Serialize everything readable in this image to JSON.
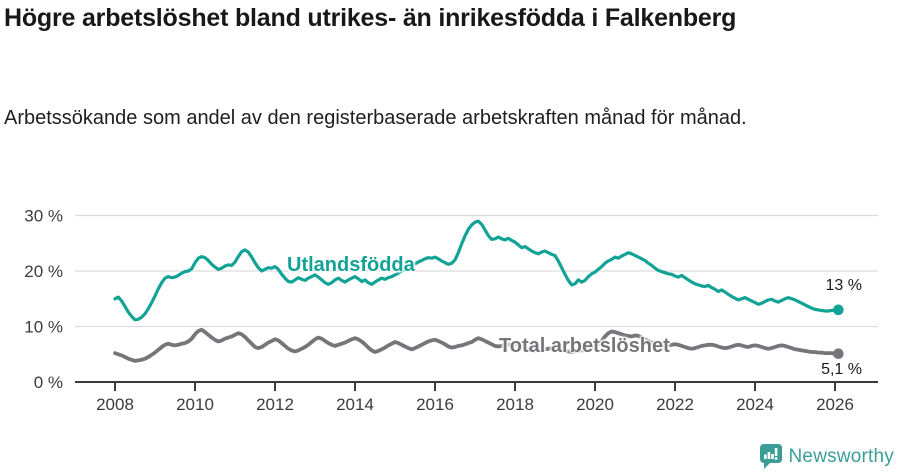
{
  "header": {
    "title": "Högre arbetslöshet bland utrikes- än inrikesfödda i Falkenberg",
    "subtitle": "Arbetssökande som andel av den registerbaserade arbetskraften månad för månad."
  },
  "footer": {
    "brand": "Newsworthy",
    "brand_color": "#3a9e96"
  },
  "colors": {
    "series_foreign_born": "#12a296",
    "series_total": "#76767a",
    "grid": "#dcdcdc",
    "axis": "#3c3c3c",
    "value_label": "#1a1a1a"
  },
  "chart_data": {
    "type": "line",
    "frequency": "monthly",
    "x_start": "2008-01",
    "x_end": "2026-02",
    "x_tick_labels": [
      "2008",
      "2010",
      "2012",
      "2014",
      "2016",
      "2018",
      "2020",
      "2022",
      "2024",
      "2026"
    ],
    "y_tick_values": [
      0,
      10,
      20,
      30
    ],
    "y_tick_labels": [
      "0 %",
      "10 %",
      "20 %",
      "30 %"
    ],
    "ylim": [
      0,
      32
    ],
    "grid": "horizontal-only",
    "legend_position": "inline-labels",
    "series": [
      {
        "name": "Utlandsfödda",
        "color": "#12a296",
        "end_label": "13 %",
        "end_value": 13,
        "values": [
          15.0,
          15.3,
          14.6,
          13.6,
          12.6,
          11.8,
          11.2,
          11.3,
          11.7,
          12.3,
          13.2,
          14.3,
          15.5,
          16.8,
          17.9,
          18.7,
          19.0,
          18.8,
          18.9,
          19.2,
          19.6,
          19.9,
          20.0,
          20.4,
          21.5,
          22.3,
          22.6,
          22.4,
          21.9,
          21.2,
          20.7,
          20.3,
          20.5,
          20.9,
          21.1,
          21.0,
          21.6,
          22.6,
          23.5,
          23.8,
          23.4,
          22.5,
          21.5,
          20.6,
          20.0,
          20.3,
          20.6,
          20.5,
          20.8,
          20.3,
          19.4,
          18.7,
          18.1,
          18.0,
          18.4,
          18.8,
          18.5,
          18.3,
          18.7,
          19.0,
          19.3,
          18.9,
          18.4,
          17.9,
          17.6,
          17.9,
          18.4,
          18.7,
          18.3,
          18.0,
          18.4,
          18.7,
          19.0,
          18.6,
          18.1,
          18.4,
          17.9,
          17.6,
          18.0,
          18.4,
          18.7,
          18.5,
          18.8,
          19.0,
          19.3,
          19.6,
          20.0,
          20.2,
          20.6,
          21.0,
          21.3,
          21.6,
          21.9,
          22.2,
          22.4,
          22.3,
          22.5,
          22.2,
          21.8,
          21.5,
          21.2,
          21.4,
          22.0,
          23.3,
          24.9,
          26.3,
          27.5,
          28.3,
          28.8,
          29.0,
          28.4,
          27.4,
          26.4,
          25.7,
          25.8,
          26.1,
          25.8,
          25.6,
          25.9,
          25.5,
          25.2,
          24.7,
          24.2,
          24.4,
          24.0,
          23.6,
          23.3,
          23.1,
          23.4,
          23.6,
          23.3,
          23.0,
          22.8,
          21.8,
          20.6,
          19.4,
          18.3,
          17.5,
          17.7,
          18.4,
          18.0,
          18.3,
          19.0,
          19.5,
          19.8,
          20.3,
          20.8,
          21.4,
          21.8,
          22.1,
          22.5,
          22.3,
          22.7,
          23.0,
          23.3,
          23.1,
          22.8,
          22.5,
          22.2,
          21.9,
          21.4,
          21.0,
          20.5,
          20.1,
          19.9,
          19.7,
          19.5,
          19.4,
          19.1,
          18.9,
          19.2,
          18.8,
          18.4,
          18.0,
          17.7,
          17.5,
          17.3,
          17.2,
          17.4,
          17.0,
          16.7,
          16.3,
          16.6,
          16.2,
          15.8,
          15.4,
          15.1,
          14.8,
          15.0,
          15.2,
          14.9,
          14.6,
          14.3,
          14.0,
          14.2,
          14.5,
          14.8,
          14.9,
          14.6,
          14.4,
          14.7,
          15.0,
          15.2,
          15.0,
          14.8,
          14.5,
          14.2,
          13.9,
          13.6,
          13.3,
          13.1,
          13.0,
          12.9,
          12.8,
          12.8,
          12.9,
          13.0,
          13.0
        ]
      },
      {
        "name": "Total arbetslöshet",
        "color": "#76767a",
        "end_label": "5,1 %",
        "end_value": 5.1,
        "values": [
          5.2,
          5.0,
          4.8,
          4.5,
          4.2,
          4.0,
          3.8,
          3.9,
          4.0,
          4.2,
          4.5,
          4.9,
          5.3,
          5.8,
          6.3,
          6.7,
          6.9,
          6.7,
          6.6,
          6.7,
          6.9,
          7.0,
          7.3,
          7.8,
          8.6,
          9.2,
          9.4,
          9.0,
          8.5,
          8.0,
          7.6,
          7.3,
          7.5,
          7.8,
          8.0,
          8.2,
          8.5,
          8.8,
          8.6,
          8.1,
          7.5,
          6.9,
          6.3,
          6.1,
          6.3,
          6.7,
          7.1,
          7.4,
          7.7,
          7.5,
          7.0,
          6.5,
          6.0,
          5.7,
          5.5,
          5.7,
          6.0,
          6.3,
          6.7,
          7.2,
          7.7,
          8.0,
          7.8,
          7.4,
          7.0,
          6.7,
          6.5,
          6.7,
          6.9,
          7.1,
          7.4,
          7.7,
          7.9,
          7.7,
          7.3,
          6.8,
          6.2,
          5.7,
          5.4,
          5.6,
          5.9,
          6.2,
          6.6,
          6.9,
          7.2,
          7.0,
          6.7,
          6.4,
          6.1,
          5.9,
          6.1,
          6.4,
          6.7,
          7.0,
          7.3,
          7.5,
          7.6,
          7.4,
          7.1,
          6.8,
          6.4,
          6.2,
          6.3,
          6.5,
          6.6,
          6.8,
          7.0,
          7.2,
          7.6,
          7.9,
          7.7,
          7.4,
          7.1,
          6.8,
          6.5,
          6.4,
          6.5,
          6.6,
          6.7,
          6.8,
          6.8,
          6.7,
          6.5,
          6.2,
          5.9,
          5.7,
          5.6,
          5.7,
          5.8,
          5.9,
          6.0,
          6.1,
          6.2,
          6.1,
          5.9,
          5.7,
          5.5,
          5.4,
          5.5,
          5.6,
          5.7,
          5.8,
          6.0,
          6.2,
          6.5,
          6.8,
          7.4,
          8.2,
          8.8,
          9.1,
          9.0,
          8.8,
          8.6,
          8.4,
          8.3,
          8.2,
          8.4,
          8.3,
          8.0,
          7.7,
          7.4,
          7.1,
          6.9,
          6.8,
          6.7,
          6.6,
          6.6,
          6.7,
          6.8,
          6.7,
          6.5,
          6.3,
          6.1,
          6.0,
          6.1,
          6.3,
          6.5,
          6.6,
          6.7,
          6.7,
          6.6,
          6.4,
          6.2,
          6.1,
          6.2,
          6.4,
          6.6,
          6.7,
          6.6,
          6.4,
          6.3,
          6.5,
          6.6,
          6.5,
          6.3,
          6.1,
          6.0,
          6.1,
          6.3,
          6.5,
          6.6,
          6.5,
          6.3,
          6.1,
          5.9,
          5.8,
          5.7,
          5.6,
          5.5,
          5.4,
          5.4,
          5.3,
          5.3,
          5.2,
          5.2,
          5.2,
          5.1,
          5.1
        ]
      }
    ]
  }
}
